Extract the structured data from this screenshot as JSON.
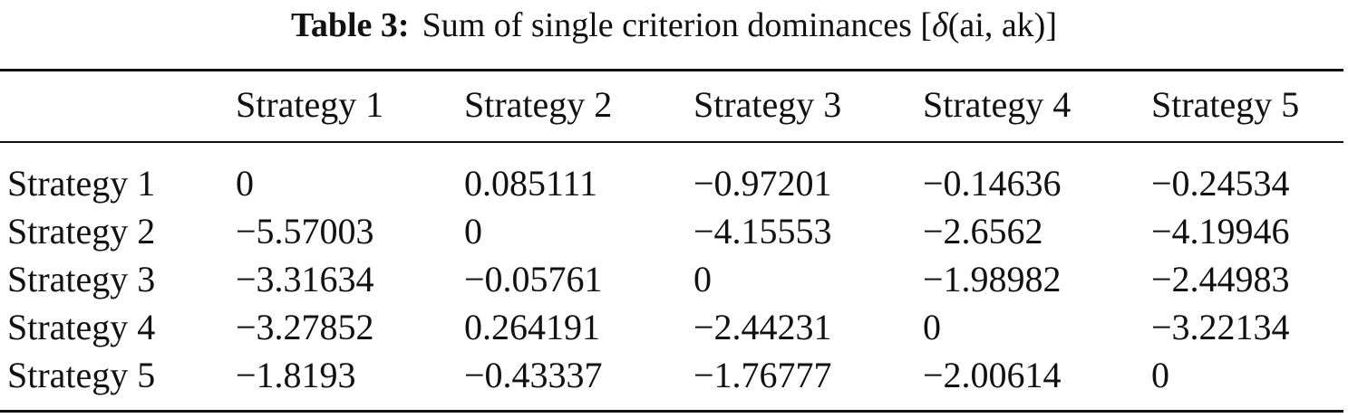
{
  "title": {
    "label": "Table 3:",
    "text_before": "Sum of single criterion dominances [",
    "symbol": "δ",
    "text_after": "(ai, ak)]"
  },
  "table": {
    "columns": [
      "Strategy 1",
      "Strategy 2",
      "Strategy 3",
      "Strategy 4",
      "Strategy 5"
    ],
    "rows": [
      [
        "Strategy 1",
        "0",
        "0.085111",
        "−0.97201",
        "−0.14636",
        "−0.24534"
      ],
      [
        "Strategy 2",
        "−5.57003",
        "0",
        "−4.15553",
        "−2.6562",
        "−4.19946"
      ],
      [
        "Strategy 3",
        "−3.31634",
        "−0.05761",
        "0",
        "−1.98982",
        "−2.44983"
      ],
      [
        "Strategy 4",
        "−3.27852",
        "0.264191",
        "−2.44231",
        "0",
        "−3.22134"
      ],
      [
        "Strategy 5",
        "−1.8193",
        "−0.43337",
        "−1.76777",
        "−2.00614",
        "0"
      ]
    ]
  }
}
